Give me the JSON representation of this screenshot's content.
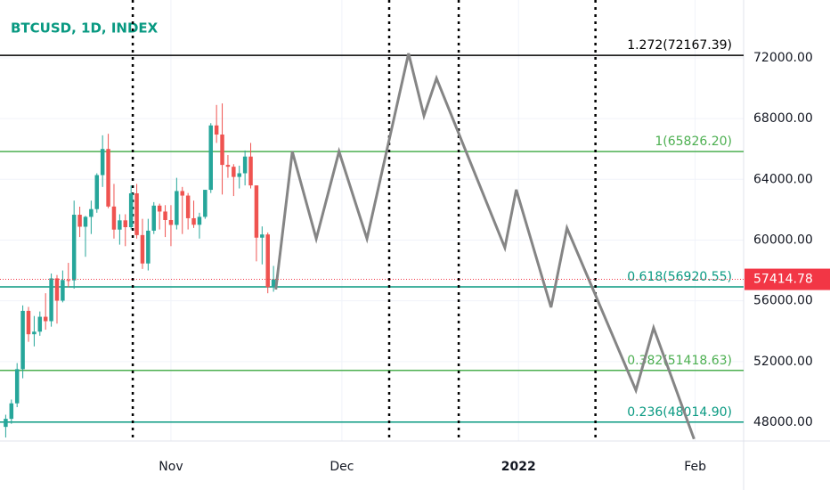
{
  "chart_data": {
    "type": "candlestick",
    "title": "BTCUSD, 1D, INDEX",
    "xlim": [
      0,
      130.5
    ],
    "xticks": [
      {
        "value": 30,
        "label": "Nov"
      },
      {
        "value": 60,
        "label": "Dec"
      },
      {
        "value": 91,
        "label": "2022"
      },
      {
        "value": 122,
        "label": "Feb"
      }
    ],
    "ylim": [
      46770,
      75810
    ],
    "yticks": [
      {
        "value": 48000,
        "label": "48000.00"
      },
      {
        "value": 52000,
        "label": "52000.00"
      },
      {
        "value": 56000,
        "label": "56000.00"
      },
      {
        "value": 60000,
        "label": "60000.00"
      },
      {
        "value": 64000,
        "label": "64000.00"
      },
      {
        "value": 68000,
        "label": "68000.00"
      },
      {
        "value": 72000,
        "label": "72000.00"
      }
    ],
    "grid": true,
    "up_color": "#26a69a",
    "down_color": "#ef5350",
    "candles": {
      "x": [
        1,
        2,
        3,
        4,
        5,
        6,
        7,
        8,
        9,
        10,
        11,
        12,
        13,
        14,
        15,
        16,
        17,
        18,
        19,
        20,
        21,
        22,
        23,
        24,
        25,
        26,
        27,
        28,
        29,
        30,
        31,
        32,
        33,
        34,
        35,
        36,
        37,
        38,
        39,
        40,
        41,
        42,
        43,
        44,
        45,
        46,
        47,
        48
      ],
      "open": [
        47700,
        48230,
        49250,
        51500,
        55340,
        53800,
        53970,
        54950,
        54660,
        57480,
        56010,
        57370,
        57350,
        61670,
        60880,
        61530,
        62040,
        64280,
        66000,
        62210,
        60690,
        61300,
        60850,
        63080,
        60330,
        58460,
        60620,
        62270,
        61880,
        61320,
        61000,
        63230,
        62930,
        61440,
        61010,
        61530,
        63310,
        67550,
        66950,
        64950,
        64830,
        64160,
        64400,
        65500,
        63600,
        60160,
        60370,
        56900
      ],
      "high": [
        48500,
        49500,
        51900,
        55700,
        55600,
        55000,
        55300,
        56500,
        57800,
        57700,
        58000,
        58500,
        62600,
        62200,
        61600,
        62600,
        64400,
        66900,
        67000,
        63700,
        61700,
        61700,
        63600,
        63700,
        61400,
        61400,
        62500,
        62400,
        62300,
        62300,
        64100,
        63500,
        63100,
        62600,
        61800,
        63300,
        67700,
        68900,
        69000,
        65600,
        65000,
        64900,
        65900,
        66400,
        63600,
        60900,
        60500,
        58300
      ],
      "low": [
        47000,
        47900,
        49000,
        50900,
        53300,
        53000,
        53700,
        54100,
        54300,
        54500,
        55900,
        56900,
        56800,
        60200,
        58900,
        60400,
        61800,
        63500,
        62100,
        60100,
        59700,
        59600,
        60700,
        60100,
        58100,
        58000,
        60400,
        60700,
        60200,
        59600,
        60700,
        60400,
        60700,
        60800,
        60100,
        61400,
        63100,
        66400,
        63000,
        64100,
        62900,
        63400,
        63600,
        63400,
        58600,
        58400,
        56500,
        56600
      ],
      "close": [
        48230,
        49250,
        51500,
        55340,
        53800,
        53970,
        54950,
        54660,
        57480,
        56010,
        57370,
        57350,
        61670,
        60880,
        61530,
        62040,
        64280,
        66000,
        62210,
        60690,
        61300,
        60850,
        63080,
        60330,
        58460,
        60620,
        62270,
        61880,
        61320,
        61000,
        63230,
        62930,
        61440,
        61010,
        61530,
        63310,
        67550,
        66950,
        64950,
        64830,
        64160,
        64400,
        65500,
        63600,
        60160,
        60370,
        56900,
        57414.78
      ]
    },
    "projection": {
      "color": "#858585",
      "x": [
        48.4,
        51.3,
        55.5,
        59.5,
        64.4,
        71.7,
        74.4,
        76.6,
        88.6,
        90.6,
        96.7,
        99.5,
        111.6,
        114.7,
        121.8
      ],
      "values": [
        56750,
        65830,
        60090,
        65830,
        60090,
        72290,
        68190,
        70650,
        59500,
        63320,
        55570,
        60790,
        50110,
        54220,
        46900
      ]
    },
    "levels": [
      {
        "label": "1.272(72167.39)",
        "value": 72167.39,
        "color": "#000000"
      },
      {
        "label": "1(65826.20)",
        "value": 65826.2,
        "color": "#4caf50"
      },
      {
        "label": "0.618(56920.55)",
        "value": 56920.55,
        "color": "#089981"
      },
      {
        "label": "0.382(51418.63)",
        "value": 51418.63,
        "color": "#4caf50"
      },
      {
        "label": "0.236(48014.90)",
        "value": 48014.9,
        "color": "#089981"
      }
    ],
    "vlines": [
      23.3,
      68.3,
      80.5,
      104.5
    ],
    "last_price": 57414.78,
    "last_price_color": "#f23645"
  }
}
